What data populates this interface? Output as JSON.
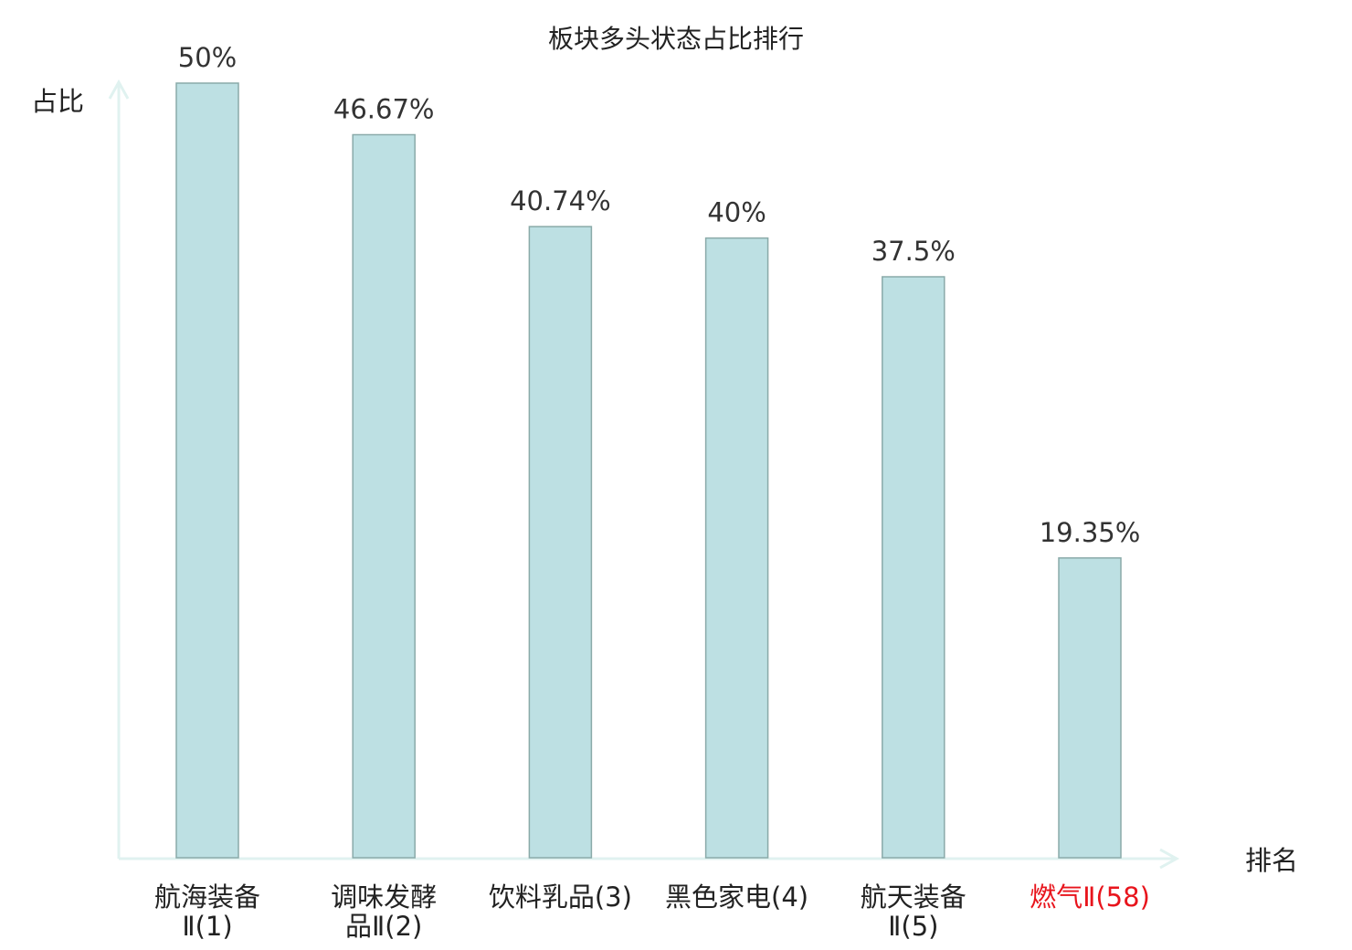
{
  "chart_data": {
    "type": "bar",
    "title": "板块多头状态占比排行",
    "ylabel": "占比",
    "xlabel": "排名",
    "categories": [
      [
        "航海装备",
        "Ⅱ(1)"
      ],
      [
        "调味发酵",
        "品Ⅱ(2)"
      ],
      [
        "饮料乳品(3)"
      ],
      [
        "黑色家电(4)"
      ],
      [
        "航天装备",
        "Ⅱ(5)"
      ],
      [
        "燃气Ⅱ(58)"
      ]
    ],
    "values": [
      50,
      46.67,
      40.74,
      40,
      37.5,
      19.35
    ],
    "data_labels": [
      "50%",
      "46.67%",
      "40.74%",
      "40%",
      "37.5%",
      "19.35%"
    ],
    "highlight_index": 5,
    "ylim": [
      0,
      50
    ],
    "grid": false,
    "colors": {
      "bar_fill": "#bde0e3",
      "bar_stroke": "#8aaaa9",
      "axis": "#e0f2f0",
      "highlight_label": "#e8141c",
      "text": "#222222"
    }
  }
}
